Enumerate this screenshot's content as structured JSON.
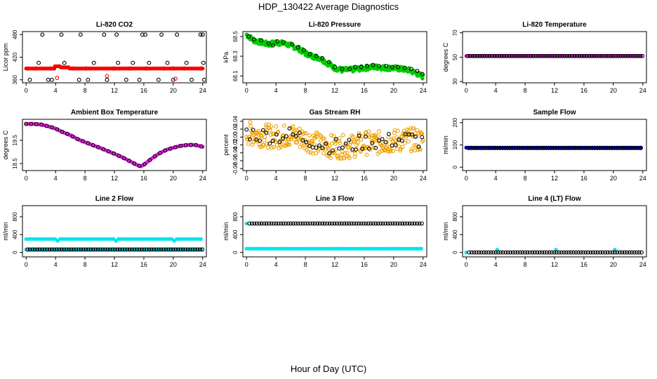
{
  "page": {
    "title": "HDP_130422  Average Diagnostics",
    "xlabel": "Hour of Day (UTC)"
  },
  "chart_data": [
    {
      "type": "scatter",
      "title": "Li-820 CO2",
      "ylabel": "Licor ppm",
      "xlim": [
        -0.5,
        24.5
      ],
      "ylim": [
        352,
        488
      ],
      "xticks": [
        "0",
        "4",
        "8",
        "12",
        "16",
        "20",
        "24"
      ],
      "yticks": [
        "360",
        "420",
        "480"
      ],
      "series": [
        {
          "color": "#000000",
          "filled": false,
          "values": [
            [
              0.5,
              360
            ],
            [
              2.2,
              480
            ],
            [
              3.5,
              360
            ],
            [
              4.8,
              480
            ],
            [
              7.4,
              480
            ],
            [
              10.6,
              480
            ],
            [
              12.3,
              480
            ],
            [
              15.8,
              480
            ],
            [
              16.2,
              480
            ],
            [
              18.4,
              480
            ],
            [
              20.5,
              480
            ],
            [
              23.7,
              480
            ],
            [
              24.0,
              480
            ],
            [
              1.7,
              405
            ],
            [
              3.0,
              360
            ],
            [
              5.2,
              405
            ],
            [
              7.2,
              360
            ],
            [
              8.4,
              360
            ],
            [
              9.2,
              405
            ],
            [
              11.0,
              360
            ],
            [
              12.5,
              405
            ],
            [
              13.6,
              360
            ],
            [
              14.5,
              405
            ],
            [
              15.4,
              360
            ],
            [
              16.7,
              405
            ],
            [
              18.0,
              360
            ],
            [
              19.2,
              405
            ],
            [
              20.0,
              360
            ],
            [
              21.8,
              405
            ],
            [
              22.5,
              360
            ],
            [
              24.1,
              405
            ],
            [
              24.2,
              360
            ]
          ]
        },
        {
          "color": "#ff0000",
          "filled": false,
          "values": [
            [
              4.2,
              365
            ],
            [
              11.0,
              370
            ],
            [
              20.3,
              363
            ]
          ]
        },
        {
          "color": "#000000",
          "filled": false,
          "values": [
            [
              0.2,
              390
            ],
            [
              1.3,
              390
            ],
            [
              3.3,
              390
            ],
            [
              3.8,
              390
            ],
            [
              6.4,
              390
            ],
            [
              8.1,
              390
            ],
            [
              11.9,
              390
            ],
            [
              14.1,
              390
            ],
            [
              16.3,
              390
            ],
            [
              18.7,
              390
            ],
            [
              20.0,
              390
            ],
            [
              21.5,
              390
            ],
            [
              23.8,
              390
            ]
          ]
        },
        {
          "color": "#ff0000",
          "filled": true,
          "kind": "band",
          "from": 0,
          "to": 24,
          "base": 390,
          "bumps": [
            [
              4.5,
              396
            ],
            [
              5.2,
              393
            ]
          ]
        }
      ]
    },
    {
      "type": "scatter",
      "title": "Li-820 Pressure",
      "ylabel": "kPa",
      "xlim": [
        -0.5,
        24.5
      ],
      "ylim": [
        68.03,
        68.55
      ],
      "xticks": [
        "0",
        "4",
        "8",
        "12",
        "16",
        "20",
        "24"
      ],
      "yticks": [
        "68.1",
        "68.3",
        "68.5"
      ],
      "series": [
        {
          "color": "#00cc00",
          "filled": true,
          "kind": "noisy",
          "noise": 0.025,
          "values": [
            [
              0,
              68.52
            ],
            [
              1,
              68.46
            ],
            [
              2,
              68.44
            ],
            [
              3,
              68.42
            ],
            [
              4,
              68.44
            ],
            [
              5,
              68.43
            ],
            [
              6,
              68.41
            ],
            [
              7,
              68.38
            ],
            [
              8,
              68.33
            ],
            [
              9,
              68.3
            ],
            [
              10,
              68.28
            ],
            [
              11,
              68.23
            ],
            [
              12,
              68.18
            ],
            [
              13,
              68.16
            ],
            [
              14,
              68.16
            ],
            [
              15,
              68.17
            ],
            [
              16,
              68.18
            ],
            [
              17,
              68.19
            ],
            [
              18,
              68.19
            ],
            [
              19,
              68.18
            ],
            [
              20,
              68.18
            ],
            [
              21,
              68.17
            ],
            [
              22,
              68.16
            ],
            [
              23,
              68.13
            ],
            [
              24,
              68.09
            ]
          ]
        },
        {
          "color": "#000000",
          "filled": false,
          "values": [
            [
              0.3,
              68.5
            ],
            [
              1.0,
              68.47
            ],
            [
              2.0,
              68.46
            ],
            [
              3.0,
              68.43
            ],
            [
              3.6,
              68.41
            ],
            [
              4.2,
              68.45
            ],
            [
              5.0,
              68.44
            ],
            [
              6.2,
              68.42
            ],
            [
              7.0,
              68.39
            ],
            [
              7.8,
              68.36
            ],
            [
              8.6,
              68.32
            ],
            [
              9.5,
              68.3
            ],
            [
              10.3,
              68.28
            ],
            [
              11.2,
              68.24
            ],
            [
              12.0,
              68.19
            ],
            [
              13.0,
              68.17
            ],
            [
              14.0,
              68.17
            ],
            [
              14.8,
              68.19
            ],
            [
              15.6,
              68.19
            ],
            [
              16.4,
              68.2
            ],
            [
              17.2,
              68.21
            ],
            [
              18.0,
              68.2
            ],
            [
              19.0,
              68.2
            ],
            [
              19.8,
              68.19
            ],
            [
              20.6,
              68.19
            ],
            [
              21.5,
              68.18
            ],
            [
              22.4,
              68.17
            ],
            [
              23.2,
              68.15
            ],
            [
              23.9,
              68.12
            ]
          ]
        }
      ]
    },
    {
      "type": "scatter",
      "title": "Li-820 Temperature",
      "ylabel": "degrees C",
      "xlim": [
        -0.5,
        24.5
      ],
      "ylim": [
        29,
        71
      ],
      "xticks": [
        "0",
        "4",
        "8",
        "12",
        "16",
        "20",
        "24"
      ],
      "yticks": [
        "30",
        "50",
        "70"
      ],
      "series": [
        {
          "color": "#dd22dd",
          "filled": true,
          "kind": "line",
          "from": 0,
          "to": 24,
          "level": 51
        },
        {
          "color": "#000000",
          "filled": false,
          "kind": "line",
          "from": 0.2,
          "to": 24,
          "level": 51
        }
      ]
    },
    {
      "type": "scatter",
      "title": "Ambient Box Temperature",
      "ylabel": "degrees C",
      "xlim": [
        -0.5,
        24.5
      ],
      "ylim": [
        18.2,
        20.4
      ],
      "xticks": [
        "0",
        "4",
        "8",
        "12",
        "16",
        "20",
        "24"
      ],
      "yticks": [
        "18.5",
        "19.5"
      ],
      "series": [
        {
          "color": "#dd22dd",
          "filled": true,
          "kind": "curve",
          "values": [
            [
              0,
              20.2
            ],
            [
              1,
              20.2
            ],
            [
              2,
              20.18
            ],
            [
              3,
              20.1
            ],
            [
              4,
              20.0
            ],
            [
              5,
              19.85
            ],
            [
              6,
              19.72
            ],
            [
              7,
              19.55
            ],
            [
              8,
              19.42
            ],
            [
              9,
              19.3
            ],
            [
              10,
              19.18
            ],
            [
              11,
              19.05
            ],
            [
              12,
              18.92
            ],
            [
              13,
              18.78
            ],
            [
              14,
              18.62
            ],
            [
              15,
              18.45
            ],
            [
              15.6,
              18.38
            ],
            [
              16,
              18.45
            ],
            [
              17,
              18.7
            ],
            [
              18,
              18.92
            ],
            [
              19,
              19.08
            ],
            [
              20,
              19.18
            ],
            [
              21,
              19.26
            ],
            [
              22,
              19.3
            ],
            [
              23,
              19.3
            ],
            [
              24,
              19.22
            ]
          ]
        },
        {
          "color": "#000000",
          "filled": false,
          "kind": "curve",
          "step": 0.7,
          "values": [
            [
              0,
              20.2
            ],
            [
              1,
              20.2
            ],
            [
              2,
              20.18
            ],
            [
              3,
              20.1
            ],
            [
              4,
              20.0
            ],
            [
              5,
              19.85
            ],
            [
              6,
              19.72
            ],
            [
              7,
              19.55
            ],
            [
              8,
              19.42
            ],
            [
              9,
              19.3
            ],
            [
              10,
              19.18
            ],
            [
              11,
              19.05
            ],
            [
              12,
              18.92
            ],
            [
              13,
              18.78
            ],
            [
              14,
              18.62
            ],
            [
              15,
              18.45
            ],
            [
              15.6,
              18.38
            ],
            [
              16,
              18.45
            ],
            [
              17,
              18.7
            ],
            [
              18,
              18.92
            ],
            [
              19,
              19.08
            ],
            [
              20,
              19.18
            ],
            [
              21,
              19.26
            ],
            [
              22,
              19.3
            ],
            [
              23,
              19.3
            ],
            [
              24,
              19.22
            ]
          ]
        }
      ]
    },
    {
      "type": "scatter",
      "title": "Gas Stream RH",
      "ylabel": "percent",
      "xlim": [
        -0.5,
        24.5
      ],
      "ylim": [
        -0.085,
        0.045
      ],
      "xticks": [
        "0",
        "4",
        "8",
        "12",
        "16",
        "20",
        "24"
      ],
      "yticks": [
        "-0.08",
        "-0.06",
        "-0.04",
        "-0.02",
        "0.00",
        "0.02",
        "0.04"
      ],
      "series": [
        {
          "color": "#f0a000",
          "filled": false,
          "kind": "noisy",
          "noise": 0.03,
          "values": [
            [
              0,
              0.01
            ],
            [
              2,
              0.005
            ],
            [
              4,
              0.0
            ],
            [
              6,
              0.005
            ],
            [
              8,
              -0.005
            ],
            [
              10,
              -0.02
            ],
            [
              12,
              -0.025
            ],
            [
              14,
              -0.025
            ],
            [
              16,
              -0.015
            ],
            [
              18,
              -0.015
            ],
            [
              20,
              -0.01
            ],
            [
              22,
              -0.005
            ],
            [
              24,
              -0.01
            ]
          ]
        },
        {
          "color": "#000000",
          "filled": false,
          "kind": "noisy",
          "noise": 0.02,
          "step": 0.45,
          "values": [
            [
              0,
              0.012
            ],
            [
              2,
              0.005
            ],
            [
              4,
              0.002
            ],
            [
              6,
              0.006
            ],
            [
              8,
              -0.004
            ],
            [
              10,
              -0.018
            ],
            [
              12,
              -0.024
            ],
            [
              14,
              -0.022
            ],
            [
              16,
              -0.012
            ],
            [
              18,
              -0.012
            ],
            [
              20,
              -0.008
            ],
            [
              22,
              -0.004
            ],
            [
              24,
              -0.01
            ]
          ]
        }
      ]
    },
    {
      "type": "scatter",
      "title": "Sample Flow",
      "ylabel": "ml/min",
      "xlim": [
        -0.5,
        24.5
      ],
      "ylim": [
        -15,
        215
      ],
      "xticks": [
        "0",
        "4",
        "8",
        "12",
        "16",
        "20",
        "24"
      ],
      "yticks": [
        "0",
        "100",
        "200"
      ],
      "series": [
        {
          "color": "#0000cc",
          "filled": true,
          "kind": "line",
          "from": 0,
          "to": 24,
          "level": 88
        },
        {
          "color": "#000000",
          "filled": false,
          "kind": "line",
          "from": 0.3,
          "to": 24,
          "level": 86
        }
      ]
    },
    {
      "type": "scatter",
      "title": "Line 2 Flow",
      "ylabel": "ml/min",
      "xlim": [
        -0.5,
        24.5
      ],
      "ylim": [
        -100,
        1050
      ],
      "xticks": [
        "0",
        "4",
        "8",
        "12",
        "16",
        "20",
        "24"
      ],
      "yticks": [
        "0",
        "400",
        "800"
      ],
      "series": [
        {
          "color": "#00e5ee",
          "filled": true,
          "kind": "line",
          "from": 0,
          "to": 24,
          "level": 300,
          "dips": [
            4.2,
            12.2,
            20.2
          ]
        },
        {
          "color": "#00e5ee",
          "filled": true,
          "kind": "line",
          "from": 0,
          "to": 24,
          "level": 65
        },
        {
          "color": "#000000",
          "filled": false,
          "kind": "line",
          "from": 0.2,
          "to": 24,
          "level": 65
        }
      ]
    },
    {
      "type": "scatter",
      "title": "Line 3 Flow",
      "ylabel": "ml/min",
      "xlim": [
        -0.5,
        24.5
      ],
      "ylim": [
        -100,
        1050
      ],
      "xticks": [
        "0",
        "4",
        "8",
        "12",
        "16",
        "20",
        "24"
      ],
      "yticks": [
        "0",
        "400",
        "800"
      ],
      "series": [
        {
          "color": "#00e5ee",
          "filled": true,
          "kind": "line",
          "from": 0,
          "to": 24,
          "level": 650,
          "onlyFirst": true
        },
        {
          "color": "#000000",
          "filled": false,
          "kind": "line",
          "from": 0.4,
          "to": 24,
          "level": 650
        },
        {
          "color": "#00e5ee",
          "filled": true,
          "kind": "line",
          "from": 0,
          "to": 24,
          "level": 85
        }
      ]
    },
    {
      "type": "scatter",
      "title": "Line 4 (LT) Flow",
      "ylabel": "ml/min",
      "xlim": [
        -0.5,
        24.5
      ],
      "ylim": [
        -100,
        1050
      ],
      "xticks": [
        "0",
        "4",
        "8",
        "12",
        "16",
        "20",
        "24"
      ],
      "yticks": [
        "0",
        "400",
        "800"
      ],
      "series": [
        {
          "color": "#00e5ee",
          "filled": true,
          "kind": "points",
          "values": [
            [
              0,
              0
            ],
            [
              4.2,
              60
            ],
            [
              12.2,
              60
            ],
            [
              20.2,
              60
            ]
          ]
        },
        {
          "color": "#000000",
          "filled": false,
          "kind": "line",
          "from": 0.4,
          "to": 24,
          "level": 0
        }
      ]
    }
  ]
}
